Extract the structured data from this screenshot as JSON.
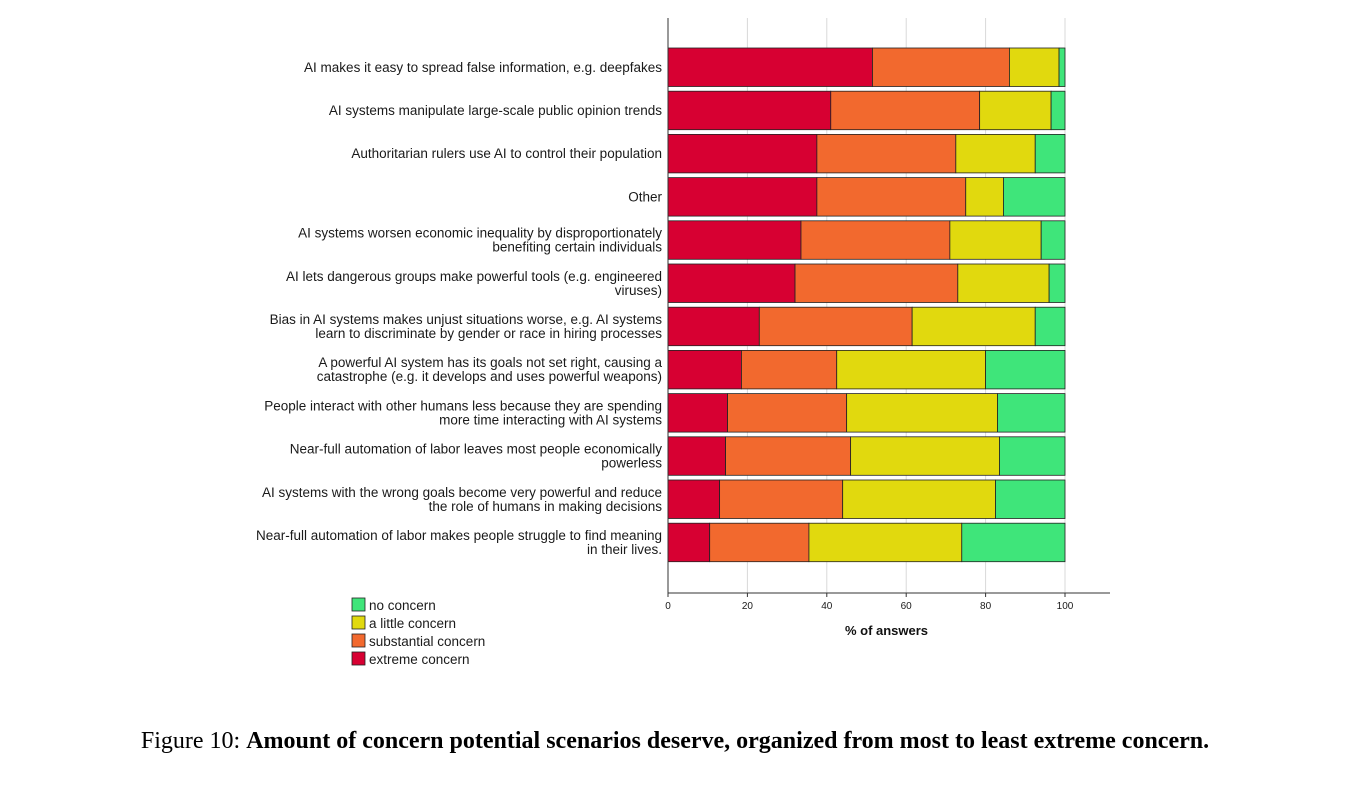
{
  "chart_data": {
    "type": "bar",
    "orientation": "horizontal",
    "stacked": true,
    "xlabel": "% of answers",
    "ylabel": "",
    "xlim": [
      0,
      100
    ],
    "xticks": [
      0,
      20,
      40,
      60,
      80,
      100
    ],
    "categories": [
      [
        "AI makes it easy to spread false information, e.g. deepfakes"
      ],
      [
        "AI systems manipulate large-scale public opinion trends"
      ],
      [
        "Authoritarian rulers use AI to control their population"
      ],
      [
        "Other"
      ],
      [
        "AI systems worsen economic inequality by disproportionately",
        "benefiting certain individuals"
      ],
      [
        "AI lets dangerous groups make powerful tools (e.g. engineered",
        "viruses)"
      ],
      [
        "Bias in AI systems makes unjust situations worse, e.g. AI systems",
        "learn to discriminate by gender or race in hiring processes"
      ],
      [
        "A powerful AI system has its goals not set right, causing a",
        "catastrophe (e.g. it develops and uses powerful weapons)"
      ],
      [
        "People interact with other humans less because they are spending",
        "more time interacting with AI systems"
      ],
      [
        "Near-full automation of labor leaves most people economically",
        "powerless"
      ],
      [
        "AI systems with the wrong goals become very powerful and reduce",
        "the role of humans in making decisions"
      ],
      [
        "Near-full automation of labor makes people struggle to find meaning",
        "in their lives."
      ]
    ],
    "series": [
      {
        "name": "extreme concern",
        "color": "#d70032",
        "values": [
          51.5,
          41,
          37.5,
          37.5,
          33.5,
          32,
          23,
          18.5,
          15,
          14.5,
          13,
          10.5
        ]
      },
      {
        "name": "substantial concern",
        "color": "#f2692e",
        "values": [
          34.5,
          37.5,
          35,
          37.5,
          37.5,
          41,
          38.5,
          24,
          30,
          31.5,
          31,
          25
        ]
      },
      {
        "name": "a little concern",
        "color": "#e1d90e",
        "values": [
          12.5,
          18,
          20,
          9.5,
          23,
          23,
          31,
          37.5,
          38,
          37.5,
          38.5,
          38.5
        ]
      },
      {
        "name": "no concern",
        "color": "#3fe57a",
        "values": [
          1.5,
          3.5,
          7.5,
          15.5,
          6,
          4,
          7.5,
          20,
          17,
          16.5,
          17.5,
          26
        ]
      }
    ],
    "legend": {
      "placement": "bottom-left",
      "order": [
        "no concern",
        "a little concern",
        "substantial concern",
        "extreme concern"
      ]
    }
  },
  "caption": {
    "prefix": "Figure 10: ",
    "text": "Amount of concern potential scenarios deserve, organized from most to least extreme concern."
  }
}
